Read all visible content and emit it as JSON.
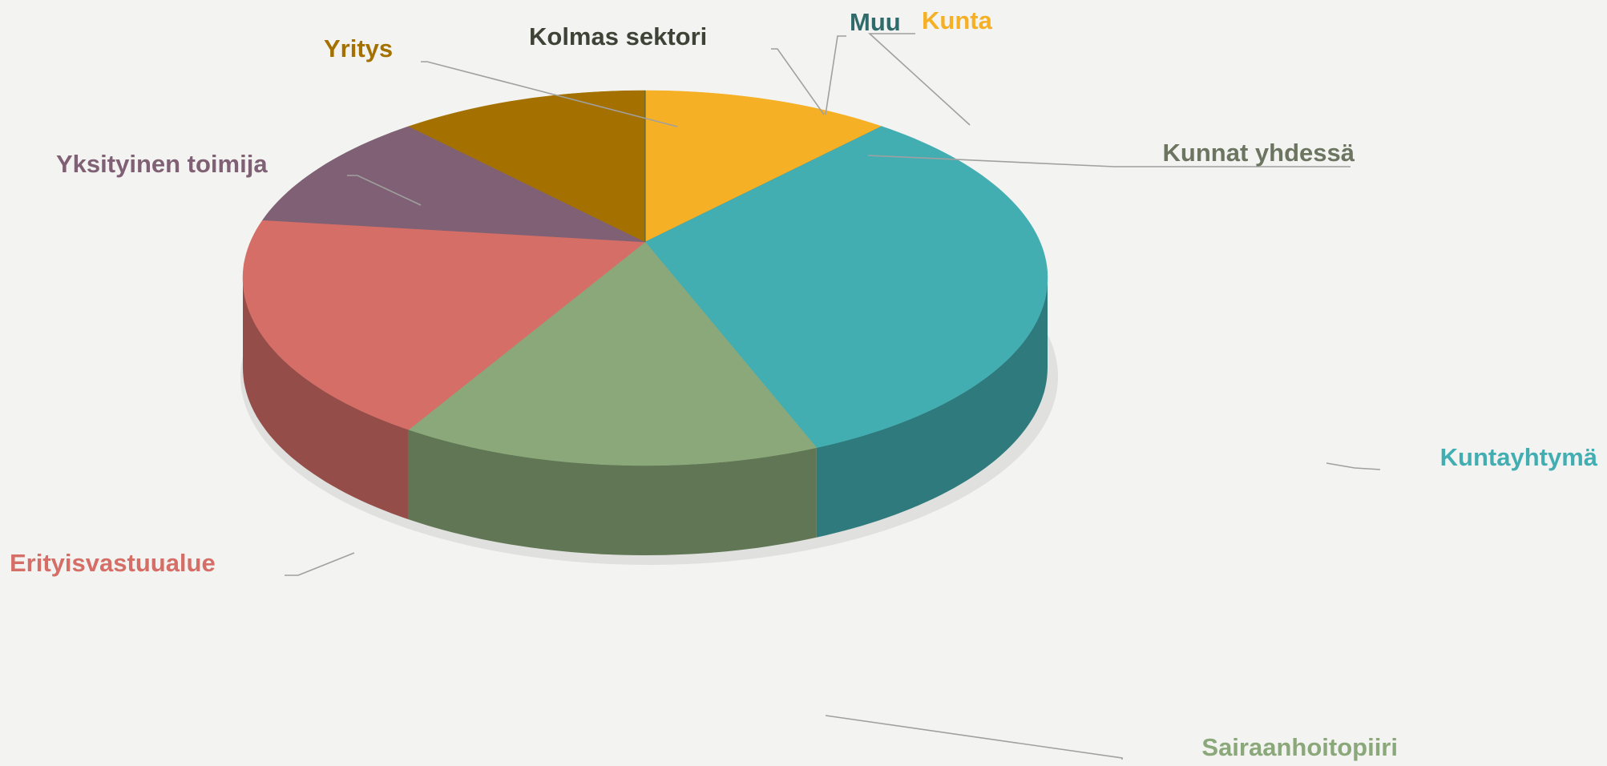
{
  "chart_data": {
    "type": "pie3d",
    "categories": [
      "Kunta",
      "Kunnat yhdessä",
      "Kuntayhtymä",
      "Sairaanhoitopiiri",
      "Erityisvastuualue",
      "Yksityinen toimija",
      "Yritys",
      "Kolmas sektori",
      "Muu"
    ],
    "values": [
      10,
      0,
      33,
      17,
      20,
      10,
      10,
      0,
      0
    ],
    "colors": [
      "#f5b025",
      "#6b7560",
      "#43aeb2",
      "#8aa87a",
      "#d46e67",
      "#7f6074",
      "#a47100",
      "#3f4237",
      "#2f6b6b"
    ]
  }
}
